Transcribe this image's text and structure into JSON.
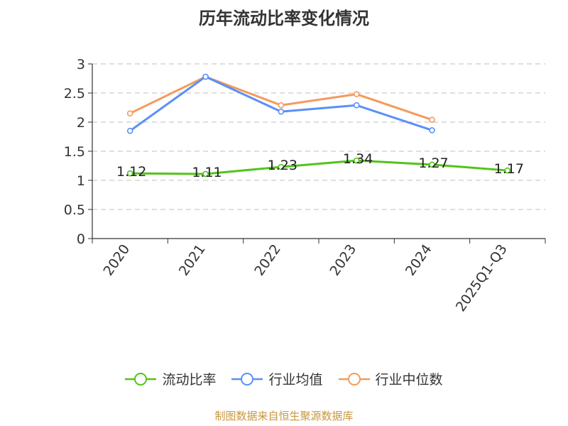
{
  "chart_data": {
    "type": "line",
    "title": "历年流动比率变化情况",
    "categories": [
      "2020",
      "2021",
      "2022",
      "2023",
      "2024",
      "2025Q1-Q3"
    ],
    "series": [
      {
        "name": "流动比率",
        "color": "#52c41a",
        "values": [
          1.12,
          1.11,
          1.23,
          1.34,
          1.27,
          1.17
        ],
        "labels": [
          "1.12",
          "1.11",
          "1.23",
          "1.34",
          "1.27",
          "1.17"
        ]
      },
      {
        "name": "行业均值",
        "color": "#5b8ff9",
        "values": [
          1.85,
          2.78,
          2.18,
          2.29,
          1.86,
          null
        ]
      },
      {
        "name": "行业中位数",
        "color": "#f59a5d",
        "values": [
          2.15,
          2.78,
          2.29,
          2.48,
          2.04,
          null
        ]
      }
    ],
    "ylim": [
      0,
      3
    ],
    "yticks": [
      "0",
      "0.5",
      "1",
      "1.5",
      "2",
      "2.5",
      "3"
    ],
    "grid": true,
    "legend_position": "bottom"
  },
  "footer": {
    "source": "制图数据来自恒生聚源数据库"
  }
}
